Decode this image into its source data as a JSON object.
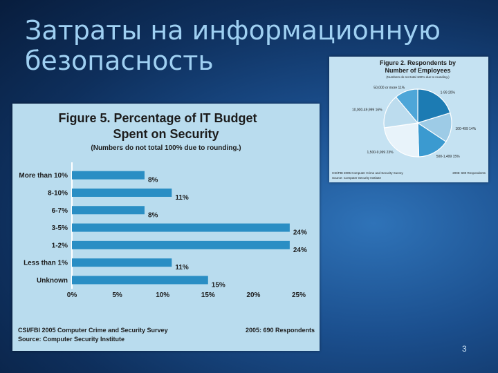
{
  "slide": {
    "title_line1": "Затраты на информационную",
    "title_line2": "безопасность",
    "page_number": "3"
  },
  "chart_data": [
    {
      "type": "bar",
      "orientation": "horizontal",
      "title_line1": "Figure 5. Percentage of IT Budget",
      "title_line2": "Spent on Security",
      "subtitle": "(Numbers do not total 100% due to rounding.)",
      "categories": [
        "More than 10%",
        "8-10%",
        "6-7%",
        "3-5%",
        "1-2%",
        "Less than 1%",
        "Unknown"
      ],
      "values": [
        8,
        11,
        8,
        24,
        24,
        11,
        15
      ],
      "value_labels": [
        "8%",
        "11%",
        "8%",
        "24%",
        "24%",
        "11%",
        "15%"
      ],
      "xlim": [
        0,
        25
      ],
      "xticks": [
        "0%",
        "5%",
        "10%",
        "15%",
        "20%",
        "25%"
      ],
      "bar_color": "#2a8ec4",
      "source_left_line1": "CSI/FBI 2005 Computer Crime and Security Survey",
      "source_left_line2": "Source: Computer Security Institute",
      "source_right": "2005: 690 Respondents"
    },
    {
      "type": "pie",
      "title_line1": "Figure 2. Respondents by",
      "title_line2": "Number of Employees",
      "subtitle": "(Numbers do not total 100% due to rounding.)",
      "slices": [
        {
          "label": "1-99",
          "value": 20,
          "color": "#1c7bb3"
        },
        {
          "label": "100-499",
          "value": 14,
          "color": "#9dcbe6"
        },
        {
          "label": "500-1,499",
          "value": 15,
          "color": "#3b9ad0"
        },
        {
          "label": "1,500-9,999",
          "value": 23,
          "color": "#e8f3fa"
        },
        {
          "label": "10,000-49,999",
          "value": 16,
          "color": "#bcdcee"
        },
        {
          "label": "50,000 or more",
          "value": 11,
          "color": "#4ea6d8"
        }
      ],
      "slice_labels": [
        "1-99 20%",
        "100-499 14%",
        "500-1,499 15%",
        "1,500-9,999 23%",
        "10,000-49,999 16%",
        "50,000 or more 11%"
      ],
      "source_left_line1": "CSI/FBI 2005 Computer Crime and Security Survey",
      "source_left_line2": "Source: Computer Security Institute",
      "source_right": "2005: 690 Respondents"
    }
  ]
}
